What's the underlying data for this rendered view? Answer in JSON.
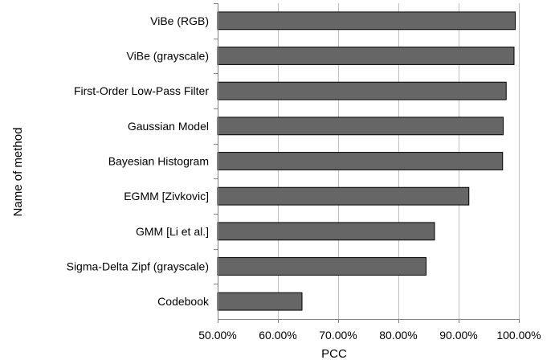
{
  "chart_data": {
    "type": "bar",
    "orientation": "horizontal",
    "categories": [
      "ViBe (RGB)",
      "ViBe (grayscale)",
      "First-Order Low-Pass Filter",
      "Gaussian Model",
      "Bayesian Histogram",
      "EGMM [Zivkovic]",
      "GMM [Li et al.]",
      "Sigma-Delta Zipf (grayscale)",
      "Codebook"
    ],
    "values": [
      99.4,
      99.2,
      97.9,
      97.4,
      97.3,
      91.7,
      86.0,
      84.6,
      64.0
    ],
    "xlim": [
      50,
      100
    ],
    "xticks": [
      50,
      60,
      70,
      80,
      90,
      100
    ],
    "xtick_labels": [
      "50.00%",
      "60.00%",
      "70.00%",
      "80.00%",
      "90.00%",
      "100.00%"
    ],
    "xlabel": "PCC",
    "ylabel": "Name of method",
    "title": "",
    "grid": "vertical",
    "legend": "none",
    "colors": {
      "bar_fill": "#666666",
      "bar_stroke": "#000000",
      "grid": "#c0c0c0",
      "axis": "#808080",
      "text": "#000000"
    }
  }
}
